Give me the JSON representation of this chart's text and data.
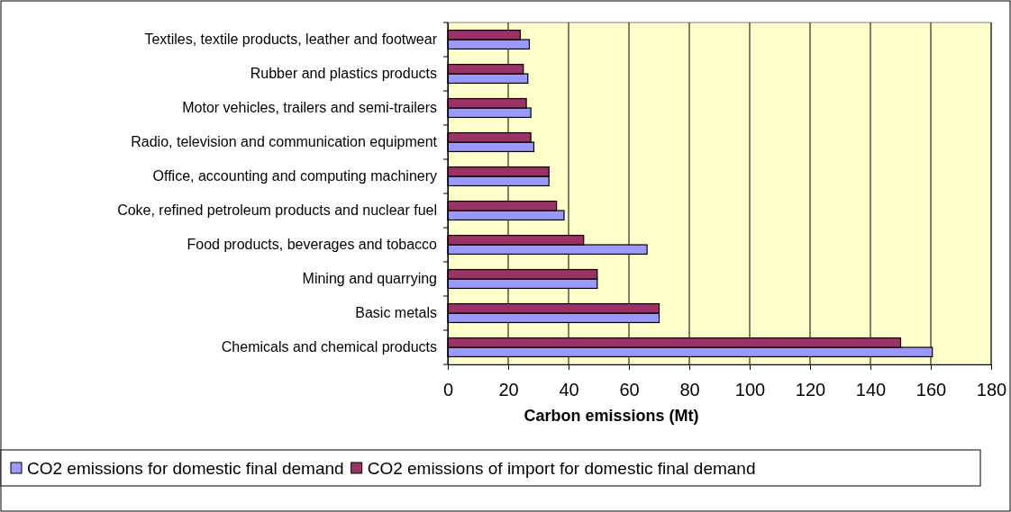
{
  "chart_data": {
    "type": "bar",
    "orientation": "horizontal",
    "xlabel": "Carbon emissions (Mt)",
    "categories": [
      "Textiles, textile products, leather and footwear",
      "Rubber and plastics products",
      "Motor vehicles, trailers and semi-trailers",
      "Radio, television and communication equipment",
      "Office, accounting and computing machinery",
      "Coke, refined petroleum products and nuclear fuel",
      "Food products, beverages and tobacco",
      "Mining and quarrying",
      "Basic metals",
      "Chemicals and chemical products"
    ],
    "series": [
      {
        "name": "CO2 emissions for domestic final demand",
        "color": "#9999ff",
        "values": [
          27,
          26.5,
          27.5,
          28.5,
          33.5,
          38.5,
          66,
          49.5,
          70,
          160.5
        ]
      },
      {
        "name": "CO2 emissions of import for domestic final demand",
        "color": "#993366",
        "values": [
          24,
          25,
          26,
          27.5,
          33.5,
          36,
          45,
          49.5,
          70,
          150
        ]
      }
    ],
    "xlim": [
      0,
      180
    ],
    "xticks": [
      0,
      20,
      40,
      60,
      80,
      100,
      120,
      140,
      160,
      180
    ],
    "grid": "x",
    "legend": "bottom"
  }
}
